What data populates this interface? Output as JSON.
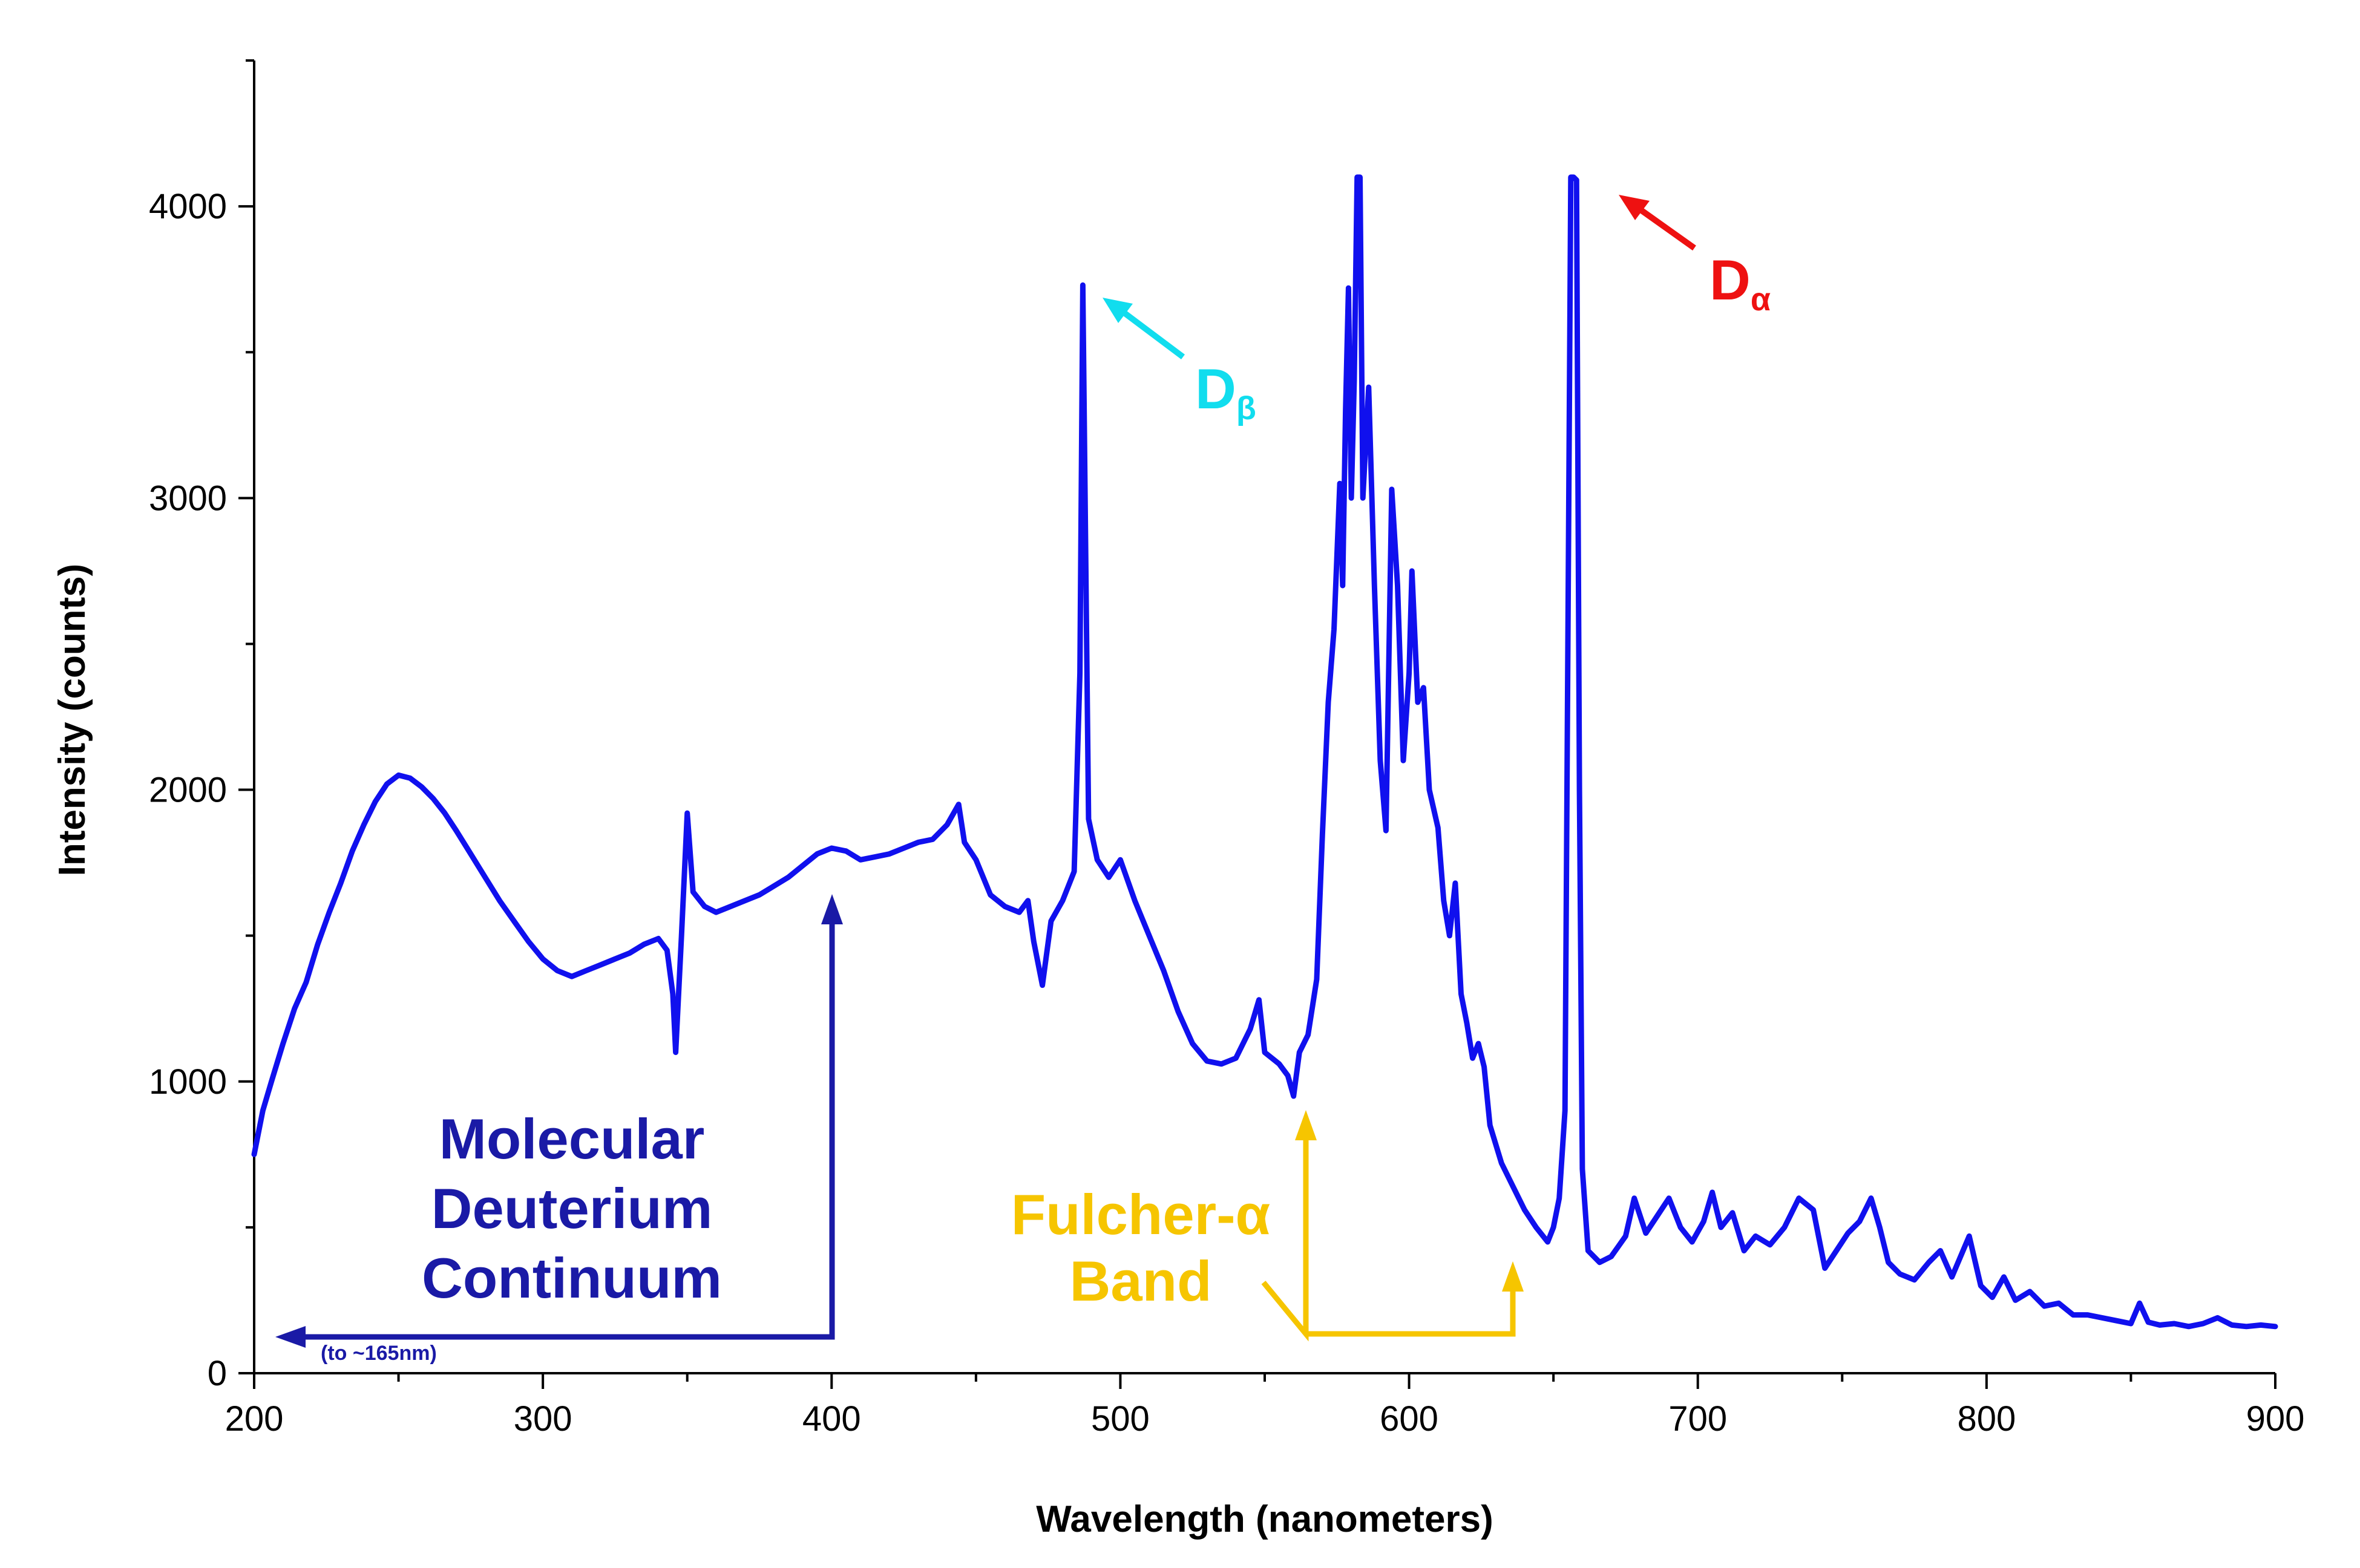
{
  "chart_data": {
    "type": "line",
    "xlabel": "Wavelength (nanometers)",
    "ylabel": "Intensity (counts)",
    "xlim": [
      200,
      900
    ],
    "ylim": [
      0,
      4500
    ],
    "x_ticks": [
      200,
      300,
      400,
      500,
      600,
      700,
      800,
      900
    ],
    "y_ticks": [
      0,
      1000,
      2000,
      3000,
      4000
    ],
    "y_minor_ticks": [
      500,
      1500,
      2500,
      3500,
      4500
    ],
    "x_minor_ticks": [
      250,
      350,
      450,
      550,
      650,
      750,
      850
    ],
    "grid": false,
    "legend": "none",
    "colors": {
      "series": "#1010ee",
      "molecular": "#1a1aa6",
      "fulcher": "#f6c500",
      "d_beta": "#11ddee",
      "d_alpha": "#ee1111",
      "axis": "#000000"
    },
    "series": [
      {
        "points": [
          [
            200,
            750
          ],
          [
            203,
            900
          ],
          [
            206,
            1000
          ],
          [
            210,
            1130
          ],
          [
            214,
            1250
          ],
          [
            218,
            1340
          ],
          [
            222,
            1470
          ],
          [
            226,
            1580
          ],
          [
            230,
            1680
          ],
          [
            234,
            1790
          ],
          [
            238,
            1880
          ],
          [
            242,
            1960
          ],
          [
            246,
            2020
          ],
          [
            250,
            2050
          ],
          [
            254,
            2040
          ],
          [
            258,
            2010
          ],
          [
            262,
            1970
          ],
          [
            266,
            1920
          ],
          [
            270,
            1860
          ],
          [
            275,
            1780
          ],
          [
            280,
            1700
          ],
          [
            285,
            1620
          ],
          [
            290,
            1550
          ],
          [
            295,
            1480
          ],
          [
            300,
            1420
          ],
          [
            305,
            1380
          ],
          [
            310,
            1360
          ],
          [
            315,
            1380
          ],
          [
            320,
            1400
          ],
          [
            325,
            1420
          ],
          [
            330,
            1440
          ],
          [
            335,
            1470
          ],
          [
            340,
            1490
          ],
          [
            343,
            1450
          ],
          [
            345,
            1300
          ],
          [
            346,
            1100
          ],
          [
            348,
            1500
          ],
          [
            350,
            1920
          ],
          [
            352,
            1650
          ],
          [
            356,
            1600
          ],
          [
            360,
            1580
          ],
          [
            365,
            1600
          ],
          [
            370,
            1620
          ],
          [
            375,
            1640
          ],
          [
            380,
            1670
          ],
          [
            385,
            1700
          ],
          [
            390,
            1740
          ],
          [
            395,
            1780
          ],
          [
            400,
            1800
          ],
          [
            405,
            1790
          ],
          [
            410,
            1760
          ],
          [
            415,
            1770
          ],
          [
            420,
            1780
          ],
          [
            425,
            1800
          ],
          [
            430,
            1820
          ],
          [
            435,
            1830
          ],
          [
            440,
            1880
          ],
          [
            444,
            1950
          ],
          [
            446,
            1820
          ],
          [
            450,
            1760
          ],
          [
            455,
            1640
          ],
          [
            460,
            1600
          ],
          [
            465,
            1580
          ],
          [
            468,
            1620
          ],
          [
            470,
            1480
          ],
          [
            473,
            1330
          ],
          [
            476,
            1550
          ],
          [
            480,
            1620
          ],
          [
            484,
            1720
          ],
          [
            486,
            2400
          ],
          [
            487,
            3730
          ],
          [
            488,
            2800
          ],
          [
            489,
            1900
          ],
          [
            492,
            1760
          ],
          [
            496,
            1700
          ],
          [
            500,
            1760
          ],
          [
            505,
            1620
          ],
          [
            510,
            1500
          ],
          [
            515,
            1380
          ],
          [
            520,
            1240
          ],
          [
            525,
            1130
          ],
          [
            530,
            1070
          ],
          [
            535,
            1060
          ],
          [
            540,
            1080
          ],
          [
            545,
            1180
          ],
          [
            548,
            1280
          ],
          [
            550,
            1100
          ],
          [
            555,
            1060
          ],
          [
            558,
            1020
          ],
          [
            560,
            950
          ],
          [
            562,
            1100
          ],
          [
            565,
            1160
          ],
          [
            568,
            1350
          ],
          [
            570,
            1850
          ],
          [
            572,
            2300
          ],
          [
            574,
            2550
          ],
          [
            576,
            3050
          ],
          [
            577,
            2700
          ],
          [
            578,
            3300
          ],
          [
            579,
            3720
          ],
          [
            580,
            3000
          ],
          [
            581,
            3400
          ],
          [
            582,
            4100
          ],
          [
            583,
            4100
          ],
          [
            584,
            3000
          ],
          [
            586,
            3380
          ],
          [
            588,
            2700
          ],
          [
            590,
            2100
          ],
          [
            592,
            1860
          ],
          [
            594,
            3030
          ],
          [
            596,
            2700
          ],
          [
            598,
            2100
          ],
          [
            600,
            2400
          ],
          [
            601,
            2750
          ],
          [
            603,
            2300
          ],
          [
            605,
            2350
          ],
          [
            607,
            2000
          ],
          [
            610,
            1870
          ],
          [
            612,
            1620
          ],
          [
            614,
            1500
          ],
          [
            616,
            1680
          ],
          [
            618,
            1300
          ],
          [
            620,
            1200
          ],
          [
            622,
            1080
          ],
          [
            624,
            1130
          ],
          [
            626,
            1050
          ],
          [
            628,
            850
          ],
          [
            632,
            720
          ],
          [
            636,
            640
          ],
          [
            640,
            560
          ],
          [
            644,
            500
          ],
          [
            648,
            450
          ],
          [
            650,
            500
          ],
          [
            652,
            600
          ],
          [
            654,
            900
          ],
          [
            655,
            2500
          ],
          [
            656,
            4100
          ],
          [
            657,
            4100
          ],
          [
            658,
            4090
          ],
          [
            659,
            2000
          ],
          [
            660,
            700
          ],
          [
            662,
            420
          ],
          [
            666,
            380
          ],
          [
            670,
            400
          ],
          [
            675,
            470
          ],
          [
            678,
            600
          ],
          [
            682,
            480
          ],
          [
            686,
            540
          ],
          [
            690,
            600
          ],
          [
            694,
            500
          ],
          [
            698,
            450
          ],
          [
            702,
            520
          ],
          [
            705,
            620
          ],
          [
            708,
            500
          ],
          [
            712,
            550
          ],
          [
            716,
            420
          ],
          [
            720,
            470
          ],
          [
            725,
            440
          ],
          [
            730,
            500
          ],
          [
            735,
            600
          ],
          [
            740,
            560
          ],
          [
            744,
            360
          ],
          [
            748,
            420
          ],
          [
            752,
            480
          ],
          [
            756,
            520
          ],
          [
            760,
            600
          ],
          [
            763,
            500
          ],
          [
            766,
            380
          ],
          [
            770,
            340
          ],
          [
            775,
            320
          ],
          [
            780,
            380
          ],
          [
            784,
            420
          ],
          [
            788,
            330
          ],
          [
            794,
            470
          ],
          [
            798,
            300
          ],
          [
            802,
            260
          ],
          [
            806,
            330
          ],
          [
            810,
            250
          ],
          [
            815,
            280
          ],
          [
            820,
            230
          ],
          [
            825,
            240
          ],
          [
            830,
            200
          ],
          [
            835,
            200
          ],
          [
            840,
            190
          ],
          [
            845,
            180
          ],
          [
            850,
            170
          ],
          [
            853,
            240
          ],
          [
            856,
            175
          ],
          [
            860,
            165
          ],
          [
            865,
            170
          ],
          [
            870,
            160
          ],
          [
            875,
            170
          ],
          [
            880,
            190
          ],
          [
            885,
            165
          ],
          [
            890,
            160
          ],
          [
            895,
            165
          ],
          [
            900,
            160
          ]
        ]
      }
    ],
    "annotations": {
      "d_beta": {
        "base": "D",
        "sub": "β"
      },
      "d_alpha": {
        "base": "D",
        "sub": "α"
      },
      "molecular": {
        "line1": "Molecular",
        "line2": "Deuterium",
        "line3": "Continuum",
        "note": "(to ~165nm)"
      },
      "fulcher": {
        "line1": "Fulcher-α",
        "line2": "Band"
      }
    }
  }
}
